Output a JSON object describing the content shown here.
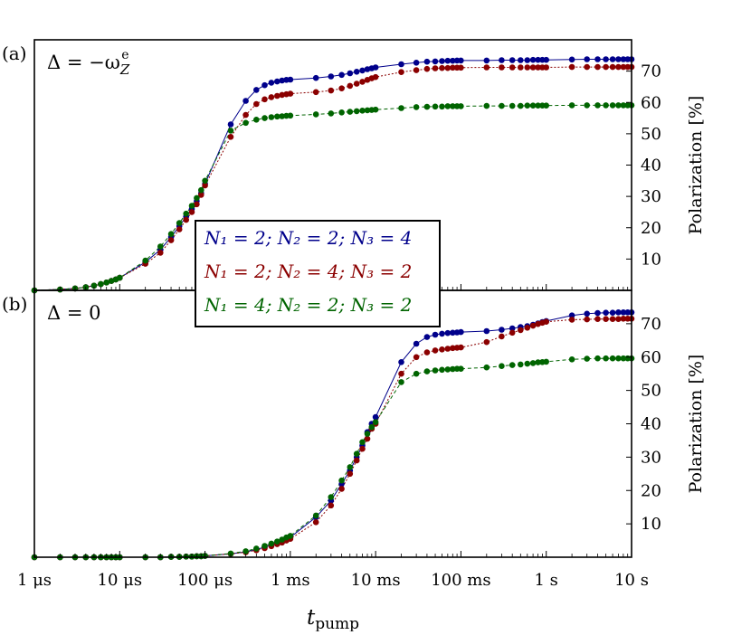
{
  "colors": {
    "series1": "#00008b",
    "series2": "#8b0000",
    "series3": "#006400",
    "axis": "#000000",
    "background": "#ffffff"
  },
  "chart_data": {
    "type": "line",
    "x_scale": "log",
    "xlim": [
      "1 µs",
      "10 s"
    ],
    "xlim_seconds": [
      1e-06,
      10
    ],
    "xticks_seconds": [
      1e-06,
      1e-05,
      0.0001,
      0.001,
      0.01,
      0.1,
      1,
      10
    ],
    "xticklabels": [
      "1 μs",
      "10 μs",
      "100 μs",
      "1 ms",
      "10 ms",
      "100 ms",
      "1 s",
      "10 s"
    ],
    "xlabel": "t",
    "xlabel_sub": "pump",
    "ylim": [
      0,
      80
    ],
    "yticks": [
      10,
      20,
      30,
      40,
      50,
      60,
      70
    ],
    "ylabel": "Polarization [%]",
    "y_axis_side": "right",
    "grid": false,
    "legend": {
      "placement": "center, between panels",
      "entries": [
        "N₁ = 2; N₂ = 2; N₃ = 4",
        "N₁ = 2; N₂ = 4; N₃ = 2",
        "N₁ = 4; N₂ = 2; N₃ = 2"
      ]
    },
    "panels": [
      {
        "tag": "(a)",
        "annotation": "Δ = −ω",
        "annotation_sub": "Z",
        "annotation_sup": "e",
        "x_seconds": [
          1e-06,
          2e-06,
          3e-06,
          4e-06,
          5e-06,
          6e-06,
          7e-06,
          8e-06,
          9e-06,
          1e-05,
          2e-05,
          3e-05,
          4e-05,
          5e-05,
          6e-05,
          7e-05,
          8e-05,
          9e-05,
          0.0001,
          0.0002,
          0.0003,
          0.0004,
          0.0005,
          0.0006,
          0.0007,
          0.0008,
          0.0009,
          0.001,
          0.002,
          0.003,
          0.004,
          0.005,
          0.006,
          0.007,
          0.008,
          0.009,
          0.01,
          0.02,
          0.03,
          0.04,
          0.05,
          0.06,
          0.07,
          0.08,
          0.09,
          0.1,
          0.2,
          0.3,
          0.4,
          0.5,
          0.6,
          0.7,
          0.8,
          0.9,
          1,
          2,
          3,
          4,
          5,
          6,
          7,
          8,
          9,
          10
        ],
        "series": [
          {
            "name": "N₁ = 2; N₂ = 2; N₃ = 4",
            "style": "solid",
            "values": [
              0,
              0.3,
              0.6,
              1,
              1.5,
              2,
              2.5,
              3,
              3.5,
              4,
              9,
              13,
              17,
              20.5,
              23.5,
              26,
              28.5,
              31,
              34,
              53,
              60.5,
              64,
              65.5,
              66.3,
              66.7,
              67,
              67.2,
              67.3,
              67.8,
              68.3,
              68.8,
              69.3,
              69.8,
              70.2,
              70.6,
              70.9,
              71.2,
              72.2,
              72.7,
              73,
              73.1,
              73.2,
              73.3,
              73.3,
              73.4,
              73.4,
              73.4,
              73.5,
              73.5,
              73.5,
              73.5,
              73.6,
              73.6,
              73.6,
              73.6,
              73.7,
              73.8,
              73.8,
              73.8,
              73.8,
              73.8,
              73.8,
              73.8,
              73.8
            ]
          },
          {
            "name": "N₁ = 2; N₂ = 4; N₃ = 2",
            "style": "dotted",
            "values": [
              0,
              0.3,
              0.6,
              1,
              1.5,
              2,
              2.5,
              3,
              3.5,
              4,
              8.5,
              12,
              16,
              19.5,
              22.5,
              25,
              27.5,
              30.5,
              33.5,
              49,
              56,
              59.5,
              61,
              61.7,
              62.1,
              62.4,
              62.6,
              62.8,
              63.3,
              63.8,
              64.5,
              65.3,
              66,
              66.6,
              67.2,
              67.7,
              68.1,
              69.7,
              70.3,
              70.7,
              70.9,
              71,
              71,
              71.1,
              71.1,
              71.1,
              71.2,
              71.2,
              71.2,
              71.2,
              71.2,
              71.2,
              71.2,
              71.2,
              71.2,
              71.3,
              71.3,
              71.3,
              71.3,
              71.3,
              71.3,
              71.3,
              71.3,
              71.3
            ]
          },
          {
            "name": "N₁ = 4; N₂ = 2; N₃ = 2",
            "style": "dashed",
            "values": [
              0,
              0.3,
              0.6,
              1,
              1.5,
              2,
              2.5,
              3,
              3.5,
              4,
              9.5,
              14,
              18,
              21.5,
              24.5,
              27,
              29.5,
              32,
              35,
              51,
              53.5,
              54.5,
              55,
              55.3,
              55.5,
              55.6,
              55.7,
              55.8,
              56.2,
              56.5,
              56.8,
              57,
              57.2,
              57.4,
              57.5,
              57.6,
              57.7,
              58.2,
              58.5,
              58.6,
              58.7,
              58.7,
              58.8,
              58.8,
              58.8,
              58.8,
              58.9,
              58.9,
              58.9,
              58.9,
              59,
              59,
              59,
              59,
              59,
              59.1,
              59.1,
              59.1,
              59.1,
              59.1,
              59.1,
              59.1,
              59.1,
              59.1
            ]
          }
        ]
      },
      {
        "tag": "(b)",
        "annotation": "Δ = 0",
        "x_seconds": [
          1e-06,
          2e-06,
          3e-06,
          4e-06,
          5e-06,
          6e-06,
          7e-06,
          8e-06,
          9e-06,
          1e-05,
          2e-05,
          3e-05,
          4e-05,
          5e-05,
          6e-05,
          7e-05,
          8e-05,
          9e-05,
          0.0001,
          0.0002,
          0.0003,
          0.0004,
          0.0005,
          0.0006,
          0.0007,
          0.0008,
          0.0009,
          0.001,
          0.002,
          0.003,
          0.004,
          0.005,
          0.006,
          0.007,
          0.008,
          0.009,
          0.01,
          0.02,
          0.03,
          0.04,
          0.05,
          0.06,
          0.07,
          0.08,
          0.09,
          0.1,
          0.2,
          0.3,
          0.4,
          0.5,
          0.6,
          0.7,
          0.8,
          0.9,
          1,
          2,
          3,
          4,
          5,
          6,
          7,
          8,
          9,
          10
        ],
        "series": [
          {
            "name": "N₁ = 2; N₂ = 2; N₃ = 4",
            "style": "solid",
            "values": [
              0,
              0,
              0,
              0,
              0,
              0,
              0,
              0,
              0,
              0,
              0,
              0,
              0.1,
              0.1,
              0.2,
              0.2,
              0.3,
              0.3,
              0.4,
              1,
              1.6,
              2.3,
              3,
              3.6,
              4.2,
              4.8,
              5.4,
              6,
              12,
              17,
              22,
              26,
              30,
              33.5,
              37.5,
              40,
              42,
              58.5,
              64,
              66,
              66.7,
              67,
              67.2,
              67.3,
              67.4,
              67.5,
              67.8,
              68.2,
              68.6,
              69,
              69.3,
              69.7,
              70.1,
              70.5,
              70.8,
              72.5,
              73,
              73.2,
              73.3,
              73.3,
              73.4,
              73.4,
              73.4,
              73.4
            ]
          },
          {
            "name": "N₁ = 2; N₂ = 4; N₃ = 2",
            "style": "dotted",
            "values": [
              0,
              0,
              0,
              0,
              0,
              0,
              0,
              0,
              0,
              0,
              0,
              0,
              0.1,
              0.1,
              0.2,
              0.2,
              0.3,
              0.3,
              0.4,
              1,
              1.5,
              2.1,
              2.7,
              3.3,
              3.9,
              4.4,
              5,
              5.5,
              10.5,
              15.5,
              20.5,
              25,
              29,
              32.5,
              35.5,
              38.5,
              40,
              55,
              60,
              61.4,
              62,
              62.3,
              62.5,
              62.7,
              62.8,
              62.9,
              64.5,
              66.2,
              67.3,
              68.1,
              68.8,
              69.4,
              69.9,
              70.3,
              70.6,
              71.2,
              71.3,
              71.4,
              71.4,
              71.4,
              71.4,
              71.5,
              71.5,
              71.5
            ]
          },
          {
            "name": "N₁ = 4; N₂ = 2; N₃ = 2",
            "style": "dashed",
            "values": [
              0,
              0,
              0,
              0,
              0,
              0,
              0,
              0,
              0,
              0,
              0,
              0,
              0.1,
              0.1,
              0.2,
              0.2,
              0.3,
              0.3,
              0.4,
              1.1,
              1.8,
              2.6,
              3.4,
              4.1,
              4.7,
              5.3,
              5.9,
              6.4,
              12.5,
              18,
              23,
              27,
              31,
              34.5,
              37,
              39,
              40.5,
              52.5,
              55,
              55.7,
              56,
              56.2,
              56.3,
              56.4,
              56.5,
              56.5,
              56.9,
              57.3,
              57.6,
              57.8,
              58,
              58.2,
              58.4,
              58.5,
              58.6,
              59.3,
              59.5,
              59.6,
              59.6,
              59.6,
              59.6,
              59.6,
              59.6,
              59.6
            ]
          }
        ]
      }
    ]
  }
}
